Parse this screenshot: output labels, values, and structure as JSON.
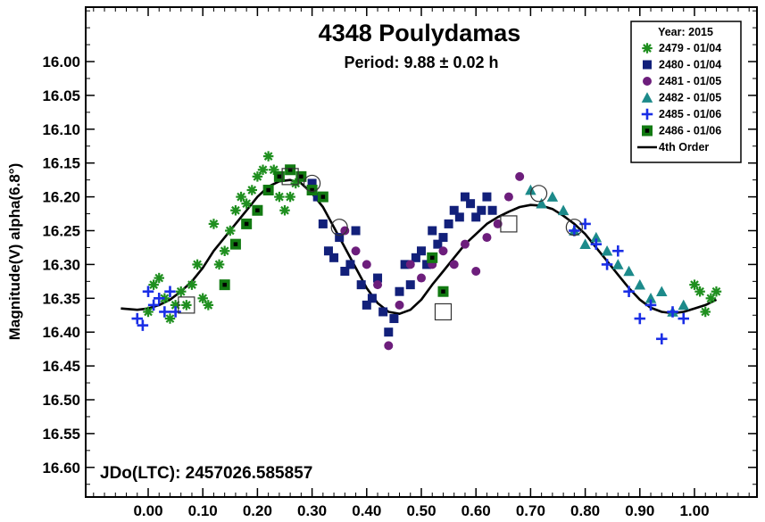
{
  "chart_data": {
    "type": "scatter",
    "title": "4348 Poulydamas",
    "subtitle": "Period: 9.88 ± 0.02 h",
    "xlabel": "",
    "ylabel": "Magnitude(V) alpha(6.8°)",
    "annotation": "JDo(LTC): 2457026.585857",
    "xlim": [
      -0.1,
      1.12
    ],
    "ylim": [
      16.66,
      15.92
    ],
    "y_inverted": true,
    "grid": false,
    "legend_position": "top-right",
    "legend_title": "Year: 2015",
    "x_ticks": [
      0.0,
      0.1,
      0.2,
      0.3,
      0.4,
      0.5,
      0.6,
      0.7,
      0.8,
      0.9,
      1.0
    ],
    "x_tick_labels": [
      "0.00",
      "0.10",
      "0.20",
      "0.30",
      "0.40",
      "0.50",
      "0.60",
      "0.70",
      "0.80",
      "0.90",
      "1.00"
    ],
    "y_ticks": [
      16.0,
      16.05,
      16.1,
      16.15,
      16.2,
      16.25,
      16.3,
      16.35,
      16.4,
      16.45,
      16.5,
      16.55,
      16.6
    ],
    "y_tick_labels": [
      "16.00",
      "16.05",
      "16.10",
      "16.15",
      "16.20",
      "16.25",
      "16.30",
      "16.35",
      "16.40",
      "16.45",
      "16.50",
      "16.55",
      "16.60"
    ],
    "series": [
      {
        "name": "2479 - 01/04",
        "marker": "asterisk",
        "color": "#1f8f1f",
        "x": [
          0.0,
          0.01,
          0.02,
          0.03,
          0.04,
          0.05,
          0.06,
          0.07,
          0.08,
          0.09,
          0.1,
          0.11,
          0.12,
          0.13,
          0.14,
          0.15,
          0.16,
          0.17,
          0.18,
          0.19,
          0.2,
          0.21,
          0.22,
          0.23,
          0.24,
          0.25,
          0.26,
          0.27,
          1.0,
          1.01,
          1.02,
          1.03,
          1.04
        ],
        "y": [
          16.37,
          16.33,
          16.32,
          16.35,
          16.38,
          16.36,
          16.34,
          16.36,
          16.33,
          16.3,
          16.35,
          16.36,
          16.24,
          16.3,
          16.28,
          16.25,
          16.22,
          16.2,
          16.21,
          16.19,
          16.17,
          16.16,
          16.14,
          16.16,
          16.2,
          16.22,
          16.2,
          16.18,
          16.33,
          16.34,
          16.37,
          16.35,
          16.34
        ]
      },
      {
        "name": "2480 - 01/04",
        "marker": "square",
        "color": "#12207a",
        "x": [
          0.3,
          0.31,
          0.32,
          0.33,
          0.34,
          0.35,
          0.36,
          0.37,
          0.38,
          0.39,
          0.4,
          0.41,
          0.42,
          0.43,
          0.44,
          0.45,
          0.46,
          0.47,
          0.48,
          0.49,
          0.5,
          0.51,
          0.52,
          0.53,
          0.54,
          0.55,
          0.56,
          0.57,
          0.58,
          0.59,
          0.6,
          0.61,
          0.62,
          0.63
        ],
        "y": [
          16.18,
          16.2,
          16.24,
          16.28,
          16.29,
          16.26,
          16.31,
          16.3,
          16.25,
          16.33,
          16.36,
          16.35,
          16.32,
          16.37,
          16.4,
          16.38,
          16.34,
          16.3,
          16.33,
          16.29,
          16.28,
          16.3,
          16.25,
          16.27,
          16.26,
          16.24,
          16.22,
          16.23,
          16.2,
          16.21,
          16.23,
          16.22,
          16.2,
          16.22
        ]
      },
      {
        "name": "2481 - 01/05",
        "marker": "circle",
        "color": "#6d1e7c",
        "x": [
          0.36,
          0.38,
          0.4,
          0.42,
          0.44,
          0.46,
          0.48,
          0.5,
          0.52,
          0.54,
          0.56,
          0.58,
          0.6,
          0.62,
          0.64,
          0.66,
          0.68
        ],
        "y": [
          16.25,
          16.28,
          16.3,
          16.33,
          16.42,
          16.36,
          16.3,
          16.32,
          16.3,
          16.28,
          16.3,
          16.27,
          16.31,
          16.26,
          16.24,
          16.2,
          16.17
        ]
      },
      {
        "name": "2482 - 01/05",
        "marker": "triangle",
        "color": "#1c8a8a",
        "x": [
          0.7,
          0.72,
          0.74,
          0.76,
          0.78,
          0.8,
          0.82,
          0.84,
          0.86,
          0.88,
          0.9,
          0.92,
          0.94,
          0.96,
          0.98
        ],
        "y": [
          16.19,
          16.21,
          16.2,
          16.22,
          16.25,
          16.27,
          16.26,
          16.28,
          16.3,
          16.31,
          16.33,
          16.35,
          16.34,
          16.37,
          16.36
        ]
      },
      {
        "name": "2485 - 01/06",
        "marker": "plus",
        "color": "#1a2ee6",
        "x": [
          -0.02,
          -0.01,
          0.0,
          0.01,
          0.02,
          0.03,
          0.04,
          0.05,
          0.78,
          0.8,
          0.82,
          0.84,
          0.86,
          0.88,
          0.9,
          0.92,
          0.94,
          0.96,
          0.98
        ],
        "y": [
          16.38,
          16.39,
          16.34,
          16.36,
          16.35,
          16.37,
          16.34,
          16.37,
          16.25,
          16.24,
          16.27,
          16.3,
          16.28,
          16.34,
          16.38,
          16.36,
          16.41,
          16.37,
          16.38
        ]
      },
      {
        "name": "2486 - 01/06",
        "marker": "boxed-square",
        "color": "#127a12",
        "x": [
          0.14,
          0.16,
          0.18,
          0.2,
          0.22,
          0.24,
          0.26,
          0.28,
          0.3,
          0.32,
          0.52,
          0.54
        ],
        "y": [
          16.33,
          16.27,
          16.24,
          16.22,
          16.19,
          16.17,
          16.16,
          16.17,
          16.19,
          16.2,
          16.29,
          16.34
        ]
      }
    ],
    "fit": {
      "name": "4th Order",
      "color": "#000000",
      "x": [
        -0.05,
        -0.02,
        0.0,
        0.02,
        0.04,
        0.06,
        0.08,
        0.1,
        0.12,
        0.14,
        0.16,
        0.18,
        0.2,
        0.22,
        0.24,
        0.26,
        0.28,
        0.3,
        0.32,
        0.34,
        0.36,
        0.38,
        0.4,
        0.42,
        0.44,
        0.46,
        0.48,
        0.5,
        0.52,
        0.54,
        0.56,
        0.58,
        0.6,
        0.62,
        0.64,
        0.66,
        0.68,
        0.7,
        0.72,
        0.74,
        0.76,
        0.78,
        0.8,
        0.82,
        0.84,
        0.86,
        0.88,
        0.9,
        0.92,
        0.94,
        0.96,
        0.98,
        1.0,
        1.02,
        1.04
      ],
      "y": [
        16.365,
        16.367,
        16.365,
        16.36,
        16.352,
        16.34,
        16.325,
        16.305,
        16.28,
        16.26,
        16.24,
        16.22,
        16.2,
        16.185,
        16.177,
        16.175,
        16.18,
        16.195,
        16.215,
        16.245,
        16.275,
        16.305,
        16.335,
        16.357,
        16.37,
        16.373,
        16.367,
        16.352,
        16.33,
        16.31,
        16.29,
        16.27,
        16.255,
        16.24,
        16.23,
        16.222,
        16.215,
        16.212,
        16.213,
        16.218,
        16.228,
        16.24,
        16.255,
        16.275,
        16.295,
        16.315,
        16.335,
        16.352,
        16.364,
        16.37,
        16.372,
        16.37,
        16.365,
        16.36,
        16.352
      ]
    },
    "circled_points": [
      {
        "x": 0.3,
        "y": 16.18
      },
      {
        "x": 0.35,
        "y": 16.245
      },
      {
        "x": 0.715,
        "y": 16.195
      },
      {
        "x": 0.78,
        "y": 16.245
      }
    ],
    "boxed_points": [
      {
        "x": 0.07,
        "y": 16.36
      },
      {
        "x": 0.26,
        "y": 16.17
      },
      {
        "x": 0.54,
        "y": 16.37
      },
      {
        "x": 0.66,
        "y": 16.24
      }
    ]
  }
}
